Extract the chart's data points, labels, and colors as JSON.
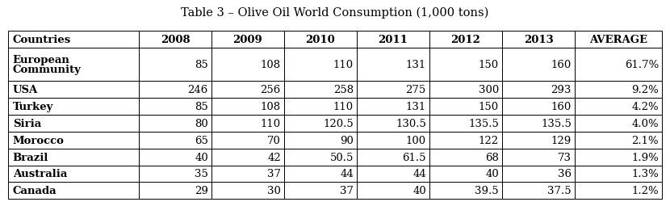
{
  "title": "Table 3 – Olive Oil World Consumption (1,000 tons)",
  "columns": [
    "Countries",
    "2008",
    "2009",
    "2010",
    "2011",
    "2012",
    "2013",
    "AVERAGE"
  ],
  "rows": [
    [
      "European\nCommunity",
      "85",
      "108",
      "110",
      "131",
      "150",
      "160",
      "61.7%"
    ],
    [
      "USA",
      "246",
      "256",
      "258",
      "275",
      "300",
      "293",
      "9.2%"
    ],
    [
      "Turkey",
      "85",
      "108",
      "110",
      "131",
      "150",
      "160",
      "4.2%"
    ],
    [
      "Siria",
      "80",
      "110",
      "120.5",
      "130.5",
      "135.5",
      "135.5",
      "4.0%"
    ],
    [
      "Morocco",
      "65",
      "70",
      "90",
      "100",
      "122",
      "129",
      "2.1%"
    ],
    [
      "Brazil",
      "40",
      "42",
      "50.5",
      "61.5",
      "68",
      "73",
      "1.9%"
    ],
    [
      "Australia",
      "35",
      "37",
      "44",
      "44",
      "40",
      "36",
      "1.3%"
    ],
    [
      "Canada",
      "29",
      "30",
      "37",
      "40",
      "39.5",
      "37.5",
      "1.2%"
    ]
  ],
  "col_widths": [
    1.8,
    1.0,
    1.0,
    1.0,
    1.0,
    1.0,
    1.0,
    1.2
  ],
  "background_color": "#ffffff",
  "title_fontsize": 10.5,
  "header_fontsize": 9.5,
  "data_fontsize": 9.5,
  "row_heights": [
    2.0,
    1.0,
    1.0,
    1.0,
    1.0,
    1.0,
    1.0,
    1.0,
    1.0
  ]
}
